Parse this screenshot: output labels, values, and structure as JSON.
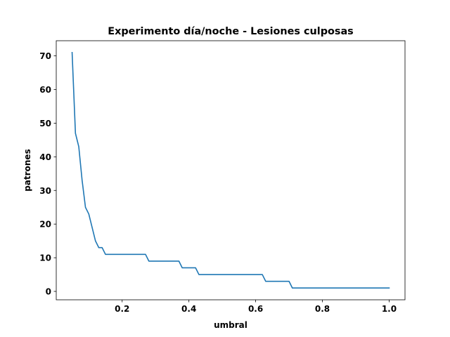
{
  "chart_data": {
    "type": "line",
    "title": "Experimento día/noche - Lesiones culposas",
    "xlabel": "umbral",
    "ylabel": "patrones",
    "xlim": [
      0.0025,
      1.0475
    ],
    "ylim": [
      -2.5,
      74.5
    ],
    "xticks": [
      0.2,
      0.4,
      0.6,
      0.8,
      1.0
    ],
    "xtick_labels": [
      "0.2",
      "0.4",
      "0.6",
      "0.8",
      "1.0"
    ],
    "yticks": [
      0,
      10,
      20,
      30,
      40,
      50,
      60,
      70
    ],
    "ytick_labels": [
      "0",
      "10",
      "20",
      "30",
      "40",
      "50",
      "60",
      "70"
    ],
    "grid": false,
    "legend": false,
    "series": [
      {
        "color": "#1f77b4",
        "x": [
          0.05,
          0.06,
          0.07,
          0.08,
          0.09,
          0.1,
          0.11,
          0.12,
          0.13,
          0.14,
          0.15,
          0.16,
          0.17,
          0.18,
          0.19,
          0.2,
          0.21,
          0.22,
          0.23,
          0.24,
          0.25,
          0.26,
          0.27,
          0.28,
          0.29,
          0.3,
          0.31,
          0.32,
          0.33,
          0.34,
          0.35,
          0.36,
          0.37,
          0.38,
          0.39,
          0.4,
          0.41,
          0.42,
          0.43,
          0.44,
          0.45,
          0.46,
          0.47,
          0.48,
          0.49,
          0.5,
          0.51,
          0.52,
          0.53,
          0.54,
          0.55,
          0.56,
          0.57,
          0.58,
          0.59,
          0.6,
          0.61,
          0.62,
          0.63,
          0.64,
          0.65,
          0.66,
          0.67,
          0.68,
          0.69,
          0.7,
          0.71,
          0.72,
          0.73,
          0.74,
          0.75,
          0.76,
          0.77,
          0.78,
          0.79,
          0.8,
          0.81,
          0.82,
          0.83,
          0.84,
          0.85,
          0.86,
          0.87,
          0.88,
          0.89,
          0.9,
          0.91,
          0.92,
          0.93,
          0.94,
          0.95,
          0.96,
          0.97,
          0.98,
          0.99,
          1.0
        ],
        "y": [
          71,
          47,
          43,
          33,
          25,
          23,
          19,
          15,
          13,
          13,
          11,
          11,
          11,
          11,
          11,
          11,
          11,
          11,
          11,
          11,
          11,
          11,
          11,
          9,
          9,
          9,
          9,
          9,
          9,
          9,
          9,
          9,
          9,
          7,
          7,
          7,
          7,
          7,
          5,
          5,
          5,
          5,
          5,
          5,
          5,
          5,
          5,
          5,
          5,
          5,
          5,
          5,
          5,
          5,
          5,
          5,
          5,
          5,
          3,
          3,
          3,
          3,
          3,
          3,
          3,
          3,
          1,
          1,
          1,
          1,
          1,
          1,
          1,
          1,
          1,
          1,
          1,
          1,
          1,
          1,
          1,
          1,
          1,
          1,
          1,
          1,
          1,
          1,
          1,
          1,
          1,
          1,
          1,
          1,
          1,
          1
        ]
      }
    ]
  }
}
